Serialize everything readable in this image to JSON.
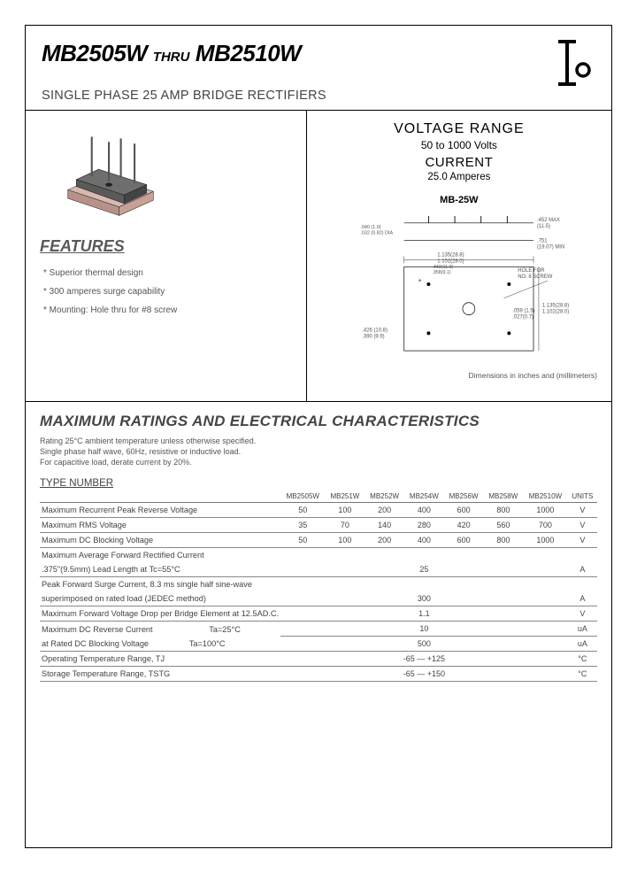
{
  "header": {
    "part_from": "MB2505W",
    "thru": "THRU",
    "part_to": "MB2510W",
    "subtitle": "SINGLE PHASE 25 AMP BRIDGE RECTIFIERS"
  },
  "specs": {
    "voltage_label": "VOLTAGE RANGE",
    "voltage_value": "50 to 1000 Volts",
    "current_label": "CURRENT",
    "current_value": "25.0 Amperes",
    "package_label": "MB-25W",
    "dim_note": "Dimensions in inches and (millimeters)"
  },
  "features": {
    "title": "FEATURES",
    "items": [
      "Superior thermal design",
      "300 amperes surge capability",
      "Mounting: Hole thru for #8 screw"
    ]
  },
  "ratings": {
    "title": "MAXIMUM RATINGS AND ELECTRICAL CHARACTERISTICS",
    "note1": "Rating 25°C ambient temperature unless otherwise specified.",
    "note2": "Single phase half wave, 60Hz, resistive or inductive load.",
    "note3": "For capacitive load, derate current by 20%.",
    "type_number": "TYPE NUMBER",
    "columns": [
      "MB2505W",
      "MB251W",
      "MB252W",
      "MB254W",
      "MB256W",
      "MB258W",
      "MB2510W",
      "UNITS"
    ],
    "rows": [
      {
        "param": "Maximum Recurrent Peak Reverse Voltage",
        "vals": [
          "50",
          "100",
          "200",
          "400",
          "600",
          "800",
          "1000"
        ],
        "unit": "V"
      },
      {
        "param": "Maximum RMS Voltage",
        "vals": [
          "35",
          "70",
          "140",
          "280",
          "420",
          "560",
          "700"
        ],
        "unit": "V"
      },
      {
        "param": "Maximum DC Blocking Voltage",
        "vals": [
          "50",
          "100",
          "200",
          "400",
          "600",
          "800",
          "1000"
        ],
        "unit": "V"
      }
    ],
    "span_rows": [
      {
        "param": "Maximum Average Forward Rectified Current",
        "sub": ".375\"(9.5mm) Lead Length at Tc=55°C",
        "val": "25",
        "unit": "A"
      },
      {
        "param": "Peak Forward Surge Current, 8.3 ms single half sine-wave",
        "sub": "superimposed on rated load (JEDEC method)",
        "val": "300",
        "unit": "A"
      },
      {
        "param": "Maximum Forward Voltage Drop per Bridge Element at 12.5AD.C.",
        "sub": "",
        "val": "1.1",
        "unit": "V"
      },
      {
        "param": "Maximum DC Reverse Current                         Ta=25°C",
        "sub": "at Rated DC Blocking Voltage                  Ta=100°C",
        "val": "10",
        "val2": "500",
        "unit": "uA"
      },
      {
        "param": "Operating Temperature Range, TJ",
        "sub": "",
        "val": "-65 — +125",
        "unit": "°C"
      },
      {
        "param": "Storage Temperature Range, TSTG",
        "sub": "",
        "val": "-65 — +150",
        "unit": "°C"
      }
    ]
  },
  "drawing": {
    "hole_label": "HOLE FOR\nNO. 8 SCREW",
    "dim1": ".452 MAX\n(11.5)",
    "dim2": ".751\n(19.07) MIN",
    "dim3": ".040 (1.0)\n.032 (0.82) DIA",
    "dim4": "1.135(28.8)\n1.102(28.0)",
    "dim5": ".443(11.3)\n.358(9.1)",
    "dim6": ".426 (10.8)\n.390 (9.9)",
    "dim8": "1.135(28.8)\n1.102(28.0)",
    "dim9": ".059 (1.5)\n.027(0.7)"
  }
}
